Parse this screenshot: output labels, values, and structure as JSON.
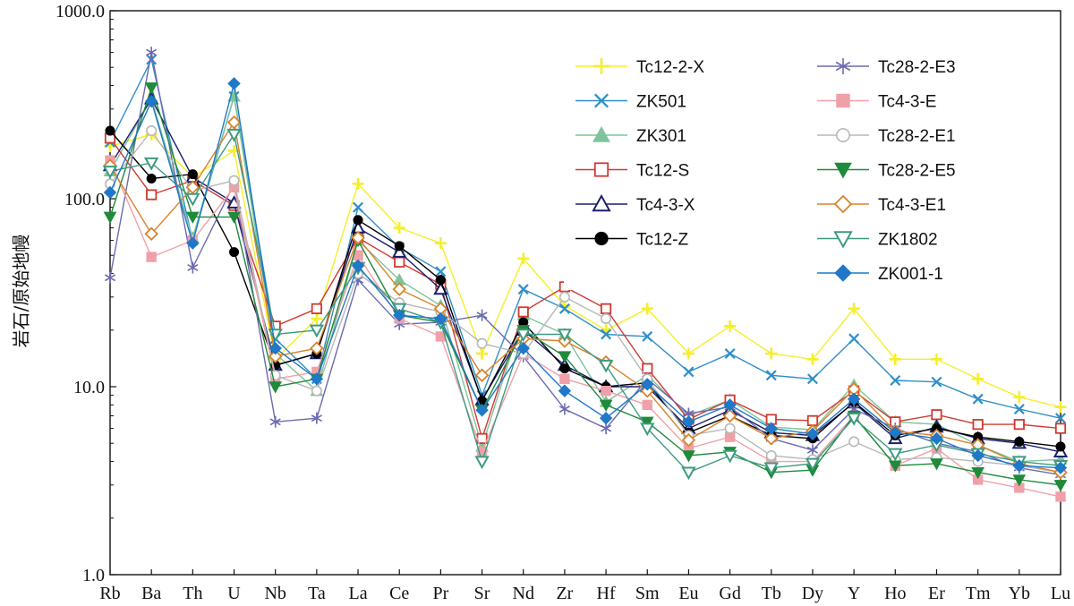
{
  "chart_data": {
    "type": "line",
    "title": "",
    "xlabel": "",
    "ylabel": "岩石/原始地幔",
    "yscale": "log",
    "ylim": [
      1.0,
      1000.0
    ],
    "yticks": [
      "1.0",
      "10.0",
      "100.0",
      "1000.0"
    ],
    "categories": [
      "Rb",
      "Ba",
      "Th",
      "U",
      "Nb",
      "Ta",
      "La",
      "Ce",
      "Pr",
      "Sr",
      "Nd",
      "Zr",
      "Hf",
      "Sm",
      "Eu",
      "Gd",
      "Tb",
      "Dy",
      "Y",
      "Ho",
      "Er",
      "Tm",
      "Yb",
      "Lu"
    ],
    "legend_position": "top-right",
    "series": [
      {
        "name": "Tc12-2-X",
        "color": "#f5ee2a",
        "marker": "plus",
        "values": [
          190,
          220,
          130,
          180,
          14,
          23,
          120,
          70,
          58,
          15,
          48,
          27,
          20,
          26,
          15,
          21,
          15,
          14,
          26,
          14,
          14,
          11,
          8.8,
          7.8
        ]
      },
      {
        "name": "ZK501",
        "color": "#2f8fc8",
        "marker": "x",
        "values": [
          200,
          550,
          60,
          350,
          18,
          11,
          90,
          55,
          41,
          9,
          33,
          26,
          19,
          18.5,
          12,
          15,
          11.5,
          11,
          18,
          10.8,
          10.6,
          8.6,
          7.6,
          6.8
        ]
      },
      {
        "name": "ZK301",
        "color": "#7dc49a",
        "marker": "triangle",
        "values": [
          140,
          340,
          62,
          350,
          15,
          9.5,
          60,
          37,
          27,
          4.8,
          24,
          19,
          8.3,
          11.5,
          7,
          8.5,
          6.1,
          5.9,
          10.2,
          6.5,
          6.3,
          4.9,
          4,
          4.1
        ]
      },
      {
        "name": "Tc12-S",
        "color": "#d03a33",
        "marker": "square-open",
        "values": [
          210,
          105,
          125,
          92,
          21,
          26,
          62,
          46,
          35,
          5.3,
          25,
          34,
          26,
          12.5,
          6.7,
          8.5,
          6.7,
          6.6,
          9.5,
          6.5,
          7.1,
          6.3,
          6.3,
          6
        ]
      },
      {
        "name": "Tc4-3-X",
        "color": "#1a1f6e",
        "marker": "triangle-open",
        "values": [
          150,
          340,
          130,
          95,
          13,
          15,
          70,
          52,
          33,
          8.5,
          20,
          13,
          10,
          10,
          6,
          7.5,
          5.7,
          5.5,
          8.2,
          5.3,
          6.1,
          5.3,
          5,
          4.5
        ]
      },
      {
        "name": "Tc12-Z",
        "color": "#000000",
        "marker": "circle-filled",
        "values": [
          230,
          128,
          135,
          52,
          13,
          15,
          77,
          56,
          37,
          8.4,
          22,
          12.5,
          10,
          10.5,
          5.7,
          7,
          5.5,
          5.3,
          8.3,
          5.5,
          6,
          5.4,
          5.1,
          4.8
        ]
      },
      {
        "name": "Tc28-2-E3",
        "color": "#6a6ab0",
        "marker": "asterisk",
        "values": [
          38,
          600,
          43,
          120,
          6.5,
          6.8,
          37,
          21.5,
          22,
          24,
          14.5,
          7.6,
          6,
          11,
          7.2,
          7.8,
          5.3,
          4.6,
          7.6,
          6,
          5,
          4.5,
          3.7,
          3.4
        ]
      },
      {
        "name": "Tc4-3-E",
        "color": "#f0a0a8",
        "marker": "square-filled",
        "values": [
          160,
          49,
          60,
          115,
          11,
          12,
          50,
          23,
          18.5,
          4.5,
          15,
          11,
          9.5,
          8,
          4.7,
          5.4,
          4,
          4,
          7,
          3.8,
          4.7,
          3.2,
          2.9,
          2.6
        ]
      },
      {
        "name": "Tc28-2-E1",
        "color": "#b8b8b8",
        "marker": "circle-open",
        "values": [
          120,
          230,
          110,
          125,
          11.5,
          9.5,
          40,
          28,
          25,
          17,
          15,
          30,
          23,
          11,
          5.5,
          6,
          4.3,
          4.1,
          5.1,
          4.1,
          4.2,
          4,
          3.8,
          3.5
        ]
      },
      {
        "name": "Tc28-2-E5",
        "color": "#1f8a3a",
        "marker": "triangle-down-filled",
        "values": [
          80,
          390,
          80,
          80,
          10,
          11,
          60,
          24,
          22,
          7.5,
          20,
          14.5,
          8,
          6.5,
          4.3,
          4.5,
          3.5,
          3.6,
          7,
          3.8,
          3.9,
          3.5,
          3.2,
          3
        ]
      },
      {
        "name": "Tc4-3-E1",
        "color": "#d9822b",
        "marker": "diamond-open",
        "values": [
          150,
          65,
          115,
          255,
          14.5,
          16,
          62,
          33,
          26,
          11.5,
          18,
          17.5,
          13.5,
          9.5,
          5.2,
          7,
          5.3,
          5.8,
          9.7,
          5.8,
          5.5,
          4.9,
          3.9,
          3.5
        ]
      },
      {
        "name": "ZK1802",
        "color": "#3e9a82",
        "marker": "triangle-down-open",
        "values": [
          140,
          155,
          100,
          220,
          19,
          20,
          43,
          26,
          22,
          4,
          19,
          19,
          13,
          6,
          3.5,
          4.3,
          3.7,
          3.9,
          6.8,
          4.4,
          4.9,
          4.4,
          4,
          3.8
        ]
      },
      {
        "name": "ZK001-1",
        "color": "#1f78c8",
        "marker": "diamond-filled",
        "values": [
          108,
          330,
          58,
          410,
          16,
          11,
          44,
          24,
          23,
          7.5,
          16,
          9.5,
          6.8,
          10.3,
          6.5,
          8,
          6,
          5.6,
          8.6,
          5.7,
          5.3,
          4.3,
          3.8,
          3.7
        ]
      }
    ]
  }
}
